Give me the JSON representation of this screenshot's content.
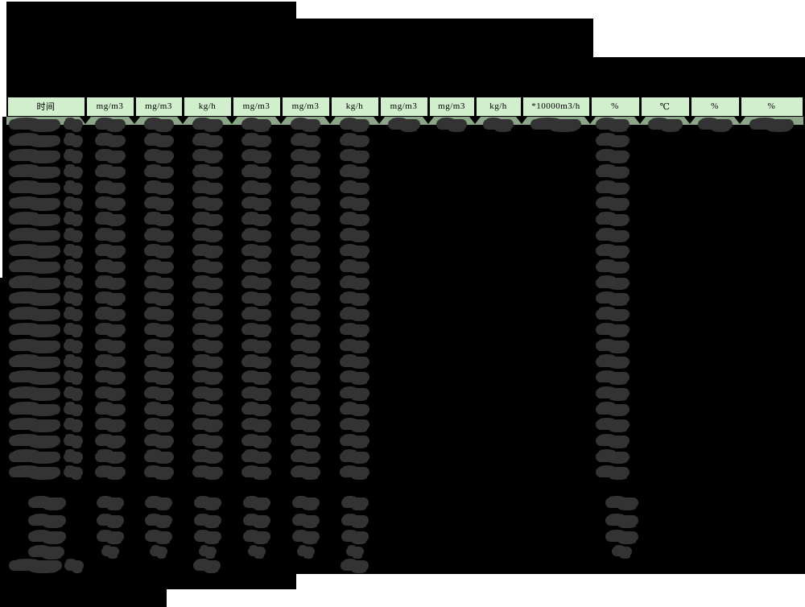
{
  "header": {
    "columns": [
      "时间",
      "mg/m3",
      "mg/m3",
      "kg/h",
      "mg/m3",
      "mg/m3",
      "kg/h",
      "mg/m3",
      "mg/m3",
      "kg/h",
      "*10000m3/h",
      "%",
      "℃",
      "%",
      "%"
    ]
  },
  "table": {
    "values_redacted": true,
    "main_row_count": 23,
    "summary_row_count": 4,
    "has_final_row": true,
    "first_main_row_value_columns": [
      0,
      1,
      2,
      3,
      4,
      5,
      6,
      7,
      8,
      9,
      10,
      11,
      12,
      13,
      14
    ],
    "main_value_columns": [
      0,
      1,
      2,
      3,
      4,
      5,
      6,
      11
    ],
    "summary_value_columns": [
      0,
      1,
      2,
      3,
      4,
      5,
      6,
      11
    ],
    "final_row_value_columns": [
      0,
      3,
      6
    ]
  },
  "colors": {
    "page_background": "#ffffff",
    "redaction_block": "#000000",
    "header_cell_green": "#d2efcd",
    "header_shadow_green": "#8aa888",
    "redacted_blob": "#333333"
  }
}
